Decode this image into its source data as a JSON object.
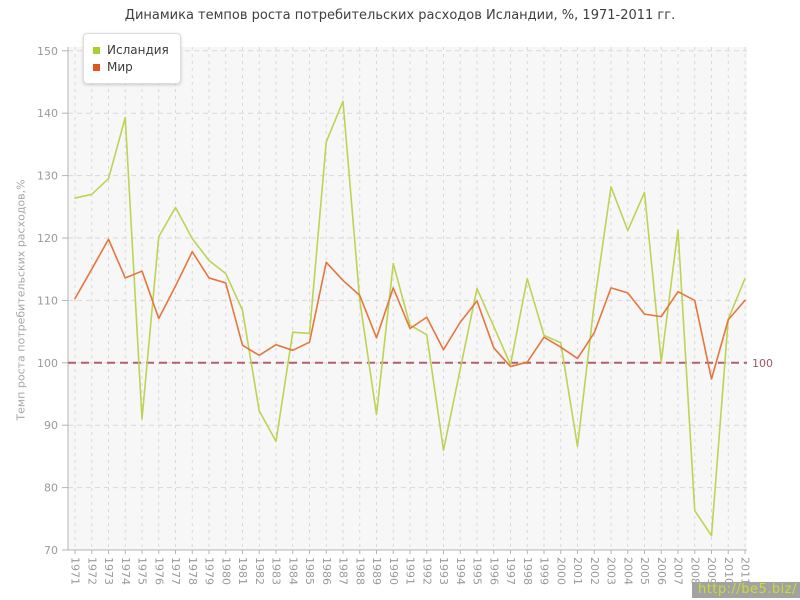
{
  "title": "Динамика темпов роста потребительских расходов Исландии, %, 1971-2011 гг.",
  "watermark": "http://be5.biz/",
  "y_axis": {
    "title": "Темп роста потребительских расходов,%",
    "min": 70,
    "max": 150,
    "tick_step": 10
  },
  "legend": {
    "items": [
      {
        "label": "Исландия",
        "marker_color": "#a9cf2b"
      },
      {
        "label": "Мир",
        "marker_color": "#e0561f"
      }
    ]
  },
  "reference_line": {
    "value": 100,
    "label": "100",
    "line_color": "#b2606e",
    "label_color": "#a05664"
  },
  "style_colors": {
    "plot_background": "#f7f7f7",
    "grid": "#d9d9d9",
    "axis": "#b5b5b5",
    "tick_label": "#9a9a9a",
    "title_text": "#3f3f3f"
  },
  "chart_data": {
    "type": "line",
    "title": "Динамика темпов роста потребительских расходов Исландии, %, 1971-2011 гг.",
    "xlabel": "",
    "ylabel": "Темп роста потребительских расходов,%",
    "ylim": [
      70,
      150
    ],
    "grid": true,
    "legend_position": "top-left",
    "reference_line_y": 100,
    "x": [
      1971,
      1972,
      1973,
      1974,
      1975,
      1976,
      1977,
      1978,
      1979,
      1980,
      1981,
      1982,
      1983,
      1984,
      1985,
      1986,
      1987,
      1988,
      1989,
      1990,
      1991,
      1992,
      1993,
      1994,
      1995,
      1996,
      1997,
      1998,
      1999,
      2000,
      2001,
      2002,
      2003,
      2004,
      2005,
      2006,
      2007,
      2008,
      2009,
      2010,
      2011
    ],
    "series": [
      {
        "name": "Исландия",
        "color": "#bdd356",
        "values": [
          126.4,
          127.0,
          129.5,
          139.3,
          91.0,
          120.2,
          124.9,
          119.9,
          116.4,
          114.3,
          108.4,
          92.3,
          87.4,
          104.9,
          104.7,
          135.4,
          141.9,
          110.0,
          91.7,
          115.9,
          106.0,
          104.5,
          86.0,
          99.0,
          111.9,
          105.8,
          99.7,
          113.5,
          104.4,
          103.2,
          86.6,
          109.5,
          128.2,
          121.2,
          127.3,
          100.2,
          121.3,
          76.3,
          72.3,
          107.0,
          113.5
        ]
      },
      {
        "name": "Мир",
        "color": "#e4773d",
        "values": [
          110.3,
          115.0,
          119.8,
          113.6,
          114.7,
          107.1,
          112.3,
          117.8,
          113.6,
          112.8,
          102.8,
          101.2,
          102.9,
          102.0,
          103.3,
          116.1,
          113.2,
          110.8,
          104.0,
          112.0,
          105.5,
          107.3,
          102.1,
          106.5,
          109.9,
          102.4,
          99.4,
          100.1,
          104.1,
          102.5,
          100.7,
          104.8,
          112.0,
          111.2,
          107.8,
          107.4,
          111.4,
          110.0,
          97.4,
          106.9,
          110.0
        ]
      }
    ]
  }
}
